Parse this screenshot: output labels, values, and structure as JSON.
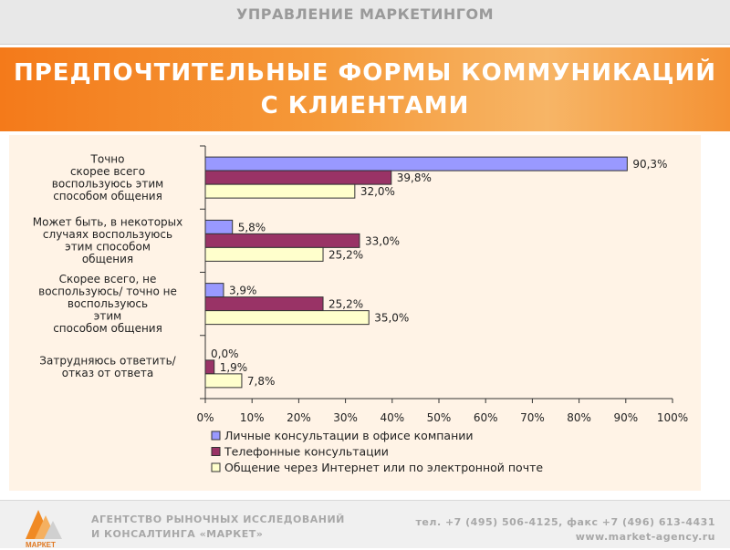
{
  "header": {
    "section_title": "УПРАВЛЕНИЕ МАРКЕТИНГОМ",
    "title_line1": "ПРЕДПОЧТИТЕЛЬНЫЕ ФОРМЫ КОММУНИКАЦИЙ",
    "title_line2": "С КЛИЕНТАМИ"
  },
  "chart_data": {
    "type": "bar",
    "orientation": "horizontal",
    "categories": [
      [
        "Точно",
        "скорее всего",
        "воспользуюсь этим",
        "способом общения"
      ],
      [
        "Может быть, в некоторых",
        "случаях воспользуюсь",
        "этим способом",
        "общения"
      ],
      [
        "Скорее всего, не",
        "воспользуюсь/ точно не",
        "воспользуюсь",
        "этим",
        "способом общения"
      ],
      [
        "Затрудняюсь ответить/",
        "отказ от ответа"
      ]
    ],
    "series": [
      {
        "name": "Личные консультации в офисе компании",
        "color": "#9999ff",
        "values": [
          90.3,
          5.8,
          3.9,
          0.0
        ],
        "labels": [
          "90,3%",
          "5,8%",
          "3,9%",
          "0,0%"
        ]
      },
      {
        "name": "Телефонные консультации",
        "color": "#993366",
        "values": [
          39.8,
          33.0,
          25.2,
          1.9
        ],
        "labels": [
          "39,8%",
          "33,0%",
          "25,2%",
          "1,9%"
        ]
      },
      {
        "name": "Общение через Интернет или по электронной почте",
        "color": "#ffffcc",
        "values": [
          32.0,
          25.2,
          35.0,
          7.8
        ],
        "labels": [
          "32,0%",
          "25,2%",
          "35,0%",
          "7,8%"
        ]
      }
    ],
    "xlim": [
      0,
      100
    ],
    "xticks": [
      0,
      10,
      20,
      30,
      40,
      50,
      60,
      70,
      80,
      90,
      100
    ],
    "xtick_labels": [
      "0%",
      "10%",
      "20%",
      "30%",
      "40%",
      "50%",
      "60%",
      "70%",
      "80%",
      "90%",
      "100%"
    ],
    "legend_position": "bottom",
    "grid": false
  },
  "footer": {
    "logo_text": "МАРКЕТ",
    "agency_line1": "АГЕНТСТВО РЫНОЧНЫХ ИССЛЕДОВАНИЙ",
    "agency_line2": "И КОНСАЛТИНГА «МАРКЕТ»",
    "contacts": "тел. +7 (495) 506-4125, факс +7 (496) 613-4431",
    "website": "www.market-agency.ru"
  }
}
